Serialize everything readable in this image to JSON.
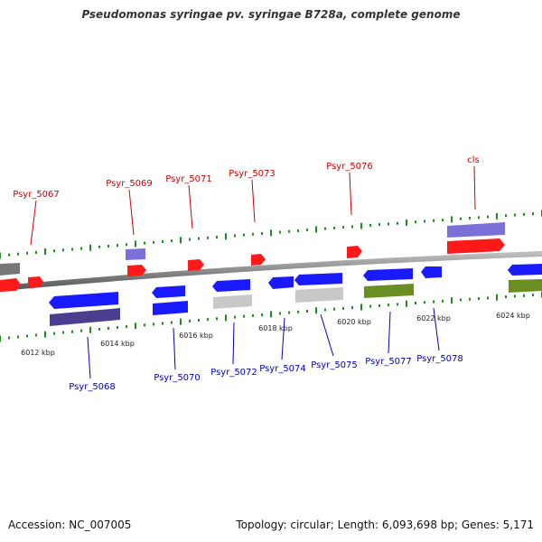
{
  "title": "Pseudomonas syringae pv. syringae B728a, complete genome",
  "footer": {
    "accession": "Accession: NC_007005",
    "topology": "Topology: circular; Length: 6,093,698 bp; Genes: 5,171"
  },
  "colors": {
    "backbone": "#8a8a8a",
    "tick_green": "#1e8c1e",
    "label_red": "#cc0000",
    "label_blue": "#0000bb",
    "gene_red": "#ff1a1a",
    "gene_blue": "#1a1aff",
    "gene_purple": "#7b6fd8",
    "gene_darkpurple": "#4a3f8f",
    "gene_gray": "#c8c8c8",
    "gene_darkgray": "#777777",
    "gene_olive": "#6b8e23"
  },
  "scale_ticks": [
    {
      "label": "6012 kbp"
    },
    {
      "label": "6014 kbp"
    },
    {
      "label": "6016 kbp"
    },
    {
      "label": "6018 kbp"
    },
    {
      "label": "6020 kbp"
    },
    {
      "label": "6022 kbp"
    },
    {
      "label": "6024 kbp"
    }
  ],
  "top_labels": [
    {
      "text": "Psyr_5067"
    },
    {
      "text": "Psyr_5069"
    },
    {
      "text": "Psyr_5071"
    },
    {
      "text": "Psyr_5073"
    },
    {
      "text": "Psyr_5076"
    },
    {
      "text": "cls"
    }
  ],
  "bottom_labels": [
    {
      "text": "Psyr_5068"
    },
    {
      "text": "Psyr_5070"
    },
    {
      "text": "Psyr_5072"
    },
    {
      "text": "Psyr_5074"
    },
    {
      "text": "Psyr_5075"
    },
    {
      "text": "Psyr_5077"
    },
    {
      "text": "Psyr_5078"
    }
  ]
}
